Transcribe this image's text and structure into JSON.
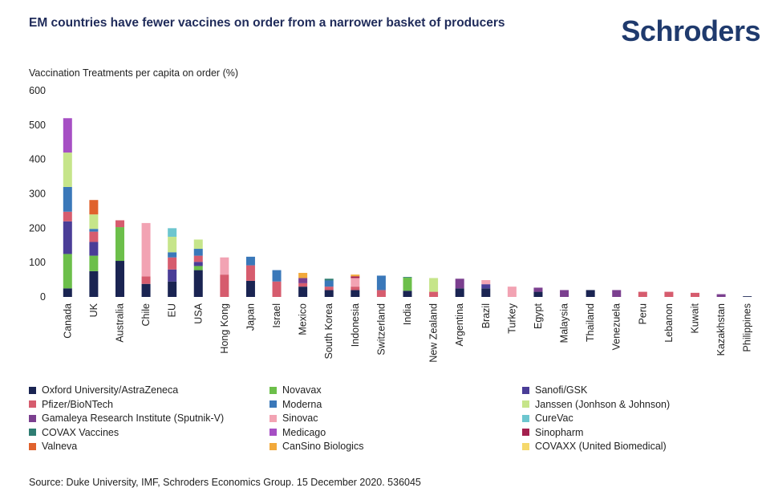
{
  "header": {
    "title": "EM countries have fewer vaccines on order from a narrower basket of producers",
    "logo": "Schroders"
  },
  "source": "Source: Duke University, IMF, Schroders Economics Group. 15 December 2020. 536045",
  "chart_data": {
    "type": "bar",
    "stacked": true,
    "ylabel": "Vaccination Treatments per capita on order (%)",
    "ylim": [
      0,
      600
    ],
    "yticks": [
      "0",
      "100",
      "200",
      "300",
      "400",
      "500",
      "600"
    ],
    "grid": false,
    "legend_position": "bottom",
    "categories": [
      "Canada",
      "UK",
      "Australia",
      "Chile",
      "EU",
      "USA",
      "Hong Kong",
      "Japan",
      "Israel",
      "Mexico",
      "South Korea",
      "Indonesia",
      "Switzerland",
      "India",
      "New Zealand",
      "Argentina",
      "Brazil",
      "Turkey",
      "Egypt",
      "Malaysia",
      "Thailand",
      "Venezuela",
      "Peru",
      "Lebanon",
      "Kuwait",
      "Kazakhstan",
      "Philippines"
    ],
    "series": [
      {
        "name": "Oxford University/AstraZeneca",
        "color": "#1a2452",
        "values": [
          25,
          75,
          105,
          38,
          45,
          78,
          0,
          47,
          0,
          30,
          20,
          20,
          0,
          18,
          0,
          25,
          25,
          0,
          15,
          0,
          20,
          0,
          0,
          0,
          0,
          0,
          2
        ]
      },
      {
        "name": "Novavax",
        "color": "#6cbf4a",
        "values": [
          100,
          45,
          98,
          0,
          0,
          12,
          0,
          0,
          0,
          0,
          0,
          0,
          0,
          38,
          0,
          0,
          0,
          0,
          0,
          0,
          0,
          0,
          0,
          0,
          0,
          0,
          0
        ]
      },
      {
        "name": "Sanofi/GSK",
        "color": "#4a3d97",
        "values": [
          95,
          40,
          0,
          0,
          35,
          12,
          0,
          0,
          0,
          0,
          0,
          0,
          0,
          0,
          0,
          0,
          12,
          0,
          0,
          0,
          0,
          0,
          0,
          0,
          0,
          0,
          0
        ]
      },
      {
        "name": "Pfizer/BioNTech",
        "color": "#d65c6e",
        "values": [
          28,
          30,
          20,
          22,
          35,
          18,
          65,
          45,
          45,
          10,
          10,
          10,
          20,
          0,
          15,
          0,
          0,
          0,
          0,
          0,
          0,
          0,
          15,
          15,
          12,
          0,
          0
        ]
      },
      {
        "name": "Moderna",
        "color": "#3a78b9",
        "values": [
          72,
          8,
          0,
          0,
          15,
          20,
          0,
          25,
          33,
          0,
          18,
          0,
          42,
          0,
          0,
          0,
          0,
          0,
          0,
          0,
          0,
          0,
          0,
          0,
          0,
          0,
          0
        ]
      },
      {
        "name": "Janssen (Jonhson & Johnson)",
        "color": "#c6e58a",
        "values": [
          100,
          42,
          0,
          0,
          45,
          27,
          0,
          0,
          0,
          0,
          0,
          0,
          0,
          0,
          40,
          0,
          0,
          0,
          0,
          0,
          0,
          0,
          0,
          0,
          0,
          0,
          0
        ]
      },
      {
        "name": "Gamaleya Research Institute (Sputnik-V)",
        "color": "#7b3f8f",
        "values": [
          0,
          0,
          0,
          0,
          0,
          0,
          0,
          0,
          0,
          15,
          0,
          0,
          0,
          0,
          0,
          28,
          0,
          0,
          12,
          20,
          0,
          20,
          0,
          0,
          0,
          8,
          0
        ]
      },
      {
        "name": "Sinovac",
        "color": "#f2a3b3",
        "values": [
          0,
          0,
          0,
          155,
          0,
          0,
          50,
          0,
          0,
          0,
          0,
          25,
          0,
          0,
          0,
          0,
          12,
          30,
          0,
          0,
          0,
          0,
          0,
          0,
          0,
          0,
          0
        ]
      },
      {
        "name": "CureVac",
        "color": "#6dc6cf",
        "values": [
          0,
          0,
          0,
          0,
          25,
          0,
          0,
          0,
          0,
          0,
          0,
          0,
          0,
          0,
          0,
          0,
          0,
          0,
          0,
          0,
          0,
          0,
          0,
          0,
          0,
          0,
          0
        ]
      },
      {
        "name": "COVAX Vaccines",
        "color": "#2e7d72",
        "values": [
          0,
          0,
          0,
          0,
          0,
          0,
          0,
          0,
          0,
          0,
          5,
          0,
          0,
          2,
          0,
          0,
          0,
          0,
          0,
          0,
          0,
          0,
          0,
          0,
          0,
          0,
          0
        ]
      },
      {
        "name": "Medicago",
        "color": "#a64fc4",
        "values": [
          100,
          0,
          0,
          0,
          0,
          0,
          0,
          0,
          0,
          0,
          0,
          0,
          0,
          0,
          0,
          0,
          0,
          0,
          0,
          0,
          0,
          0,
          0,
          0,
          0,
          0,
          0
        ]
      },
      {
        "name": "Sinopharm",
        "color": "#a3204e",
        "values": [
          0,
          0,
          0,
          0,
          0,
          0,
          0,
          0,
          0,
          0,
          0,
          5,
          0,
          0,
          0,
          0,
          0,
          0,
          0,
          0,
          0,
          0,
          0,
          0,
          0,
          0,
          0
        ]
      },
      {
        "name": "Valneva",
        "color": "#e0622d",
        "values": [
          0,
          42,
          0,
          0,
          0,
          0,
          0,
          0,
          0,
          0,
          0,
          0,
          0,
          0,
          0,
          0,
          0,
          0,
          0,
          0,
          0,
          0,
          0,
          0,
          0,
          0,
          0
        ]
      },
      {
        "name": "CanSino Biologics",
        "color": "#f2a93b",
        "values": [
          0,
          0,
          0,
          0,
          0,
          0,
          0,
          0,
          0,
          15,
          0,
          5,
          0,
          0,
          0,
          0,
          0,
          0,
          0,
          0,
          0,
          0,
          0,
          0,
          0,
          0,
          0
        ]
      },
      {
        "name": "COVAXX (United Biomedical)",
        "color": "#f5d86b",
        "values": [
          0,
          0,
          0,
          0,
          0,
          0,
          0,
          0,
          0,
          0,
          0,
          0,
          0,
          0,
          0,
          0,
          0,
          0,
          0,
          0,
          0,
          0,
          0,
          0,
          0,
          0,
          0
        ]
      }
    ]
  }
}
